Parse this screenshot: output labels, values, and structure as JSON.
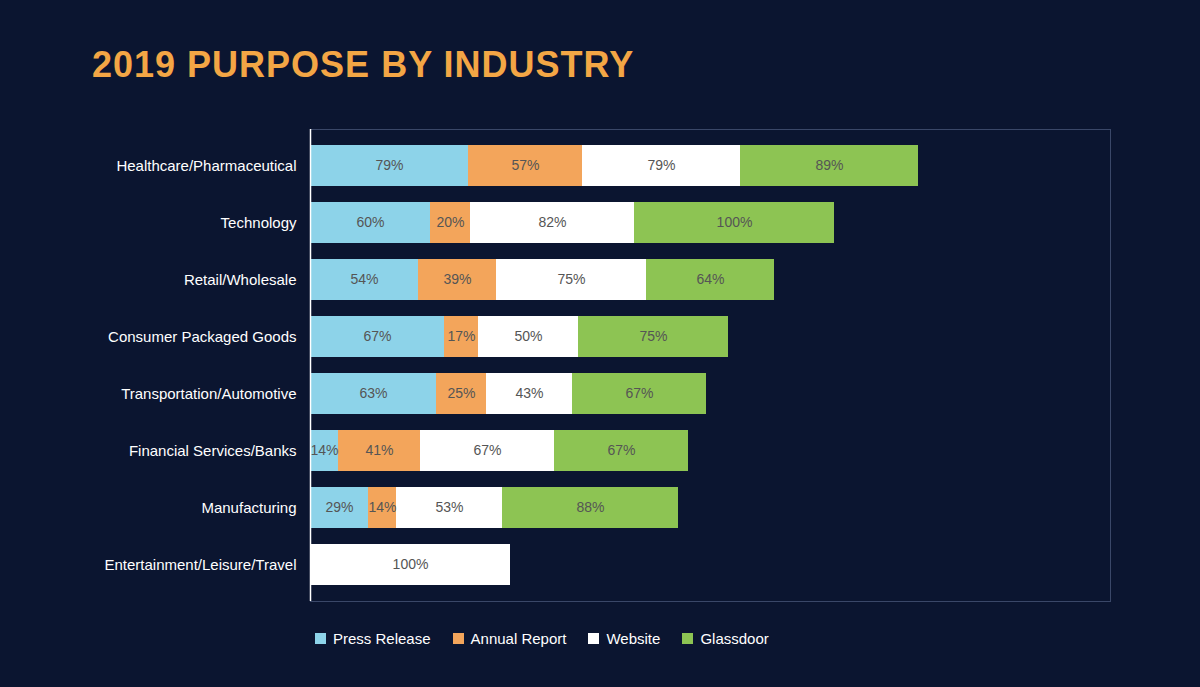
{
  "chart_data": {
    "type": "bar",
    "title": "2019 PURPOSE BY INDUSTRY",
    "orientation": "horizontal",
    "stacked": true,
    "data_labels": true,
    "tick_labels": "y",
    "legend": "bottom",
    "xlim": [
      0,
      400
    ],
    "categories": [
      "Healthcare/Pharmaceutical",
      "Technology",
      "Retail/Wholesale",
      "Consumer Packaged Goods",
      "Transportation/Automotive",
      "Financial Services/Banks",
      "Manufacturing",
      "Entertainment/Leisure/Travel"
    ],
    "series": [
      {
        "name": "Press Release",
        "color": "#8dd3e9",
        "values": [
          79,
          60,
          54,
          67,
          63,
          14,
          29,
          null
        ],
        "value_labels": [
          "79%",
          "60%",
          "54%",
          "67%",
          "63%",
          "14%",
          "29%",
          null
        ]
      },
      {
        "name": "Annual Report",
        "color": "#f3a55b",
        "values": [
          57,
          20,
          39,
          17,
          25,
          41,
          14,
          null
        ],
        "value_labels": [
          "57%",
          "20%",
          "39%",
          "17%",
          "25%",
          "41%",
          "14%",
          null
        ]
      },
      {
        "name": "Website",
        "color": "#ffffff",
        "values": [
          79,
          82,
          75,
          50,
          43,
          67,
          53,
          100
        ],
        "value_labels": [
          "79%",
          "82%",
          "75%",
          "50%",
          "43%",
          "67%",
          "53%",
          "100%"
        ]
      },
      {
        "name": "Glassdoor",
        "color": "#8dc453",
        "values": [
          89,
          100,
          64,
          75,
          67,
          67,
          88,
          null
        ],
        "value_labels": [
          "89%",
          "100%",
          "64%",
          "75%",
          "67%",
          "67%",
          "88%",
          null
        ]
      }
    ]
  }
}
